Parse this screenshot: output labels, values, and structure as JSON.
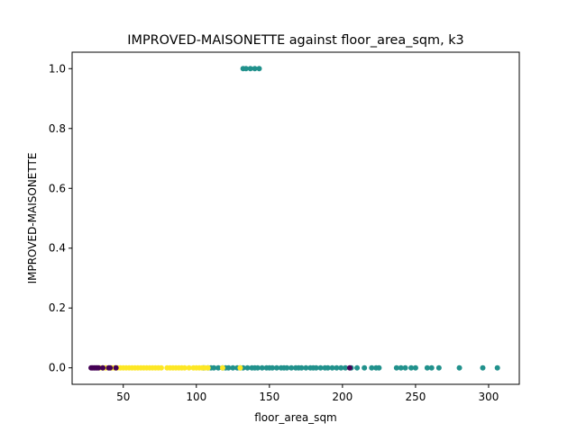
{
  "chart_data": {
    "type": "scatter",
    "title": "IMPROVED-MAISONETTE against floor_area_sqm, k3",
    "xlabel": "floor_area_sqm",
    "ylabel": "IMPROVED-MAISONETTE",
    "xlim": [
      15,
      321
    ],
    "ylim": [
      -0.055,
      1.055
    ],
    "x_ticks": [
      50,
      100,
      150,
      200,
      250,
      300
    ],
    "y_ticks": [
      0.0,
      0.2,
      0.4,
      0.6,
      0.8,
      1.0
    ],
    "x_tick_labels": [
      "50",
      "100",
      "150",
      "200",
      "250",
      "300"
    ],
    "y_tick_labels": [
      "0.0",
      "0.2",
      "0.4",
      "0.6",
      "0.8",
      "1.0"
    ],
    "grid": false,
    "legend": "none",
    "colors": {
      "cluster_purple": "#440154",
      "cluster_teal": "#21918c",
      "cluster_yellow": "#fde725"
    },
    "series": [
      {
        "color": "#21918c",
        "points": [
          [
            105,
            0
          ],
          [
            108,
            0
          ],
          [
            110,
            0
          ],
          [
            112,
            0
          ],
          [
            115,
            0
          ],
          [
            118,
            0
          ],
          [
            120,
            0
          ],
          [
            122,
            0
          ],
          [
            125,
            0
          ],
          [
            128,
            0
          ],
          [
            130,
            0
          ],
          [
            132,
            0
          ],
          [
            135,
            0
          ],
          [
            138,
            0
          ],
          [
            140,
            0
          ],
          [
            142,
            0
          ],
          [
            145,
            0
          ],
          [
            148,
            0
          ],
          [
            150,
            0
          ],
          [
            152,
            0
          ],
          [
            155,
            0
          ],
          [
            158,
            0
          ],
          [
            160,
            0
          ],
          [
            162,
            0
          ],
          [
            165,
            0
          ],
          [
            168,
            0
          ],
          [
            170,
            0
          ],
          [
            172,
            0
          ],
          [
            175,
            0
          ],
          [
            178,
            0
          ],
          [
            180,
            0
          ],
          [
            182,
            0
          ],
          [
            185,
            0
          ],
          [
            188,
            0
          ],
          [
            190,
            0
          ],
          [
            193,
            0
          ],
          [
            196,
            0
          ],
          [
            199,
            0
          ],
          [
            202,
            0
          ],
          [
            206,
            0
          ],
          [
            210,
            0
          ],
          [
            215,
            0
          ],
          [
            220,
            0
          ],
          [
            223,
            0
          ],
          [
            225,
            0
          ],
          [
            237,
            0
          ],
          [
            240,
            0
          ],
          [
            243,
            0
          ],
          [
            247,
            0
          ],
          [
            250,
            0
          ],
          [
            258,
            0
          ],
          [
            261,
            0
          ],
          [
            266,
            0
          ],
          [
            280,
            0
          ],
          [
            296,
            0
          ],
          [
            306,
            0
          ],
          [
            132,
            1
          ],
          [
            134,
            1
          ],
          [
            137,
            1
          ],
          [
            140,
            1
          ],
          [
            143,
            1
          ]
        ]
      },
      {
        "color": "#fde725",
        "points": [
          [
            34,
            0
          ],
          [
            36,
            0
          ],
          [
            38,
            0
          ],
          [
            42,
            0
          ],
          [
            44,
            0
          ],
          [
            46,
            0
          ],
          [
            48,
            0
          ],
          [
            50,
            0
          ],
          [
            52,
            0
          ],
          [
            54,
            0
          ],
          [
            56,
            0
          ],
          [
            58,
            0
          ],
          [
            60,
            0
          ],
          [
            62,
            0
          ],
          [
            64,
            0
          ],
          [
            66,
            0
          ],
          [
            68,
            0
          ],
          [
            70,
            0
          ],
          [
            72,
            0
          ],
          [
            74,
            0
          ],
          [
            76,
            0
          ],
          [
            80,
            0
          ],
          [
            82,
            0
          ],
          [
            84,
            0
          ],
          [
            86,
            0
          ],
          [
            88,
            0
          ],
          [
            90,
            0
          ],
          [
            92,
            0
          ],
          [
            95,
            0
          ],
          [
            98,
            0
          ],
          [
            100,
            0
          ],
          [
            102,
            0
          ],
          [
            104,
            0
          ],
          [
            106,
            0
          ],
          [
            108,
            0
          ],
          [
            118,
            0
          ],
          [
            130,
            0
          ]
        ]
      },
      {
        "color": "#440154",
        "points": [
          [
            28,
            0
          ],
          [
            29,
            0
          ],
          [
            30,
            0
          ],
          [
            31,
            0
          ],
          [
            32,
            0
          ],
          [
            33,
            0
          ],
          [
            36,
            0
          ],
          [
            40,
            0
          ],
          [
            41,
            0
          ],
          [
            45,
            0
          ],
          [
            205,
            0
          ]
        ]
      }
    ]
  }
}
